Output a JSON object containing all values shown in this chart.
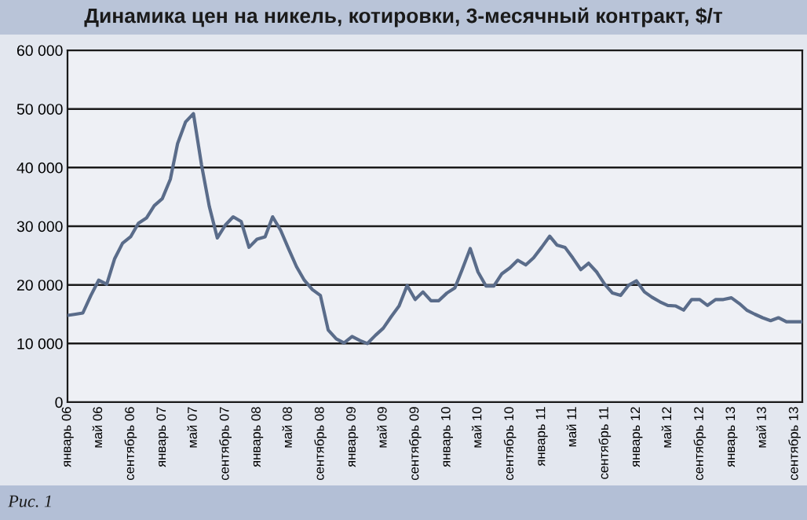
{
  "chart_data": {
    "type": "line",
    "title": "Динамика цен на никель, котировки, 3-месячный контракт, $/т",
    "annotations": [
      "Рис. 1"
    ],
    "x": [
      "2006-01",
      "2006-02",
      "2006-03",
      "2006-04",
      "2006-05",
      "2006-06",
      "2006-07",
      "2006-08",
      "2006-09",
      "2006-10",
      "2006-11",
      "2006-12",
      "2007-01",
      "2007-02",
      "2007-03",
      "2007-04",
      "2007-05",
      "2007-06",
      "2007-07",
      "2007-08",
      "2007-09",
      "2007-10",
      "2007-11",
      "2007-12",
      "2008-01",
      "2008-02",
      "2008-03",
      "2008-04",
      "2008-05",
      "2008-06",
      "2008-07",
      "2008-08",
      "2008-09",
      "2008-10",
      "2008-11",
      "2008-12",
      "2009-01",
      "2009-02",
      "2009-03",
      "2009-04",
      "2009-05",
      "2009-06",
      "2009-07",
      "2009-08",
      "2009-09",
      "2009-10",
      "2009-11",
      "2009-12",
      "2010-01",
      "2010-02",
      "2010-03",
      "2010-04",
      "2010-05",
      "2010-06",
      "2010-07",
      "2010-08",
      "2010-09",
      "2010-10",
      "2010-11",
      "2010-12",
      "2011-01",
      "2011-02",
      "2011-03",
      "2011-04",
      "2011-05",
      "2011-06",
      "2011-07",
      "2011-08",
      "2011-09",
      "2011-10",
      "2011-11",
      "2011-12",
      "2012-01",
      "2012-02",
      "2012-03",
      "2012-04",
      "2012-05",
      "2012-06",
      "2012-07",
      "2012-08",
      "2012-09",
      "2012-10",
      "2012-11",
      "2012-12",
      "2013-01",
      "2013-02",
      "2013-03",
      "2013-04",
      "2013-05",
      "2013-06",
      "2013-07",
      "2013-08",
      "2013-09",
      "2013-10"
    ],
    "series": [
      {
        "color": "#5a6c8a",
        "values": [
          14800,
          15000,
          15200,
          18200,
          20800,
          20100,
          24400,
          27100,
          28200,
          30500,
          31400,
          33500,
          34700,
          38000,
          44100,
          47800,
          49200,
          40500,
          33400,
          28000,
          30200,
          31600,
          30800,
          26400,
          27800,
          28200,
          31600,
          29300,
          26200,
          23100,
          20800,
          19200,
          18200,
          12300,
          10800,
          10100,
          11200,
          10500,
          10000,
          11400,
          12600,
          14600,
          16400,
          19900,
          17500,
          18800,
          17300,
          17300,
          18600,
          19500,
          22600,
          26200,
          22200,
          19800,
          19800,
          21900,
          22900,
          24200,
          23400,
          24600,
          26400,
          28300,
          26800,
          26400,
          24600,
          22600,
          23700,
          22200,
          20100,
          18600,
          18200,
          19900,
          20700,
          18800,
          17900,
          17100,
          16500,
          16400,
          15700,
          17500,
          17500,
          16500,
          17500,
          17500,
          17800,
          16800,
          15700,
          15000,
          14400,
          13900,
          14400,
          13700,
          13700,
          13700
        ]
      }
    ],
    "xlim": [
      "2006-01",
      "2013-10"
    ],
    "xticks": [
      {
        "value": "2006-01",
        "label": "январь 06"
      },
      {
        "value": "2006-05",
        "label": "май 06"
      },
      {
        "value": "2006-09",
        "label": "сентябрь 06"
      },
      {
        "value": "2007-01",
        "label": "январь 07"
      },
      {
        "value": "2007-05",
        "label": "май 07"
      },
      {
        "value": "2007-09",
        "label": "сентябрь 07"
      },
      {
        "value": "2008-01",
        "label": "январь 08"
      },
      {
        "value": "2008-05",
        "label": "май 08"
      },
      {
        "value": "2008-09",
        "label": "сентябрь 08"
      },
      {
        "value": "2009-01",
        "label": "январь 09"
      },
      {
        "value": "2009-05",
        "label": "май 09"
      },
      {
        "value": "2009-09",
        "label": "сентябрь 09"
      },
      {
        "value": "2010-01",
        "label": "январь 10"
      },
      {
        "value": "2010-05",
        "label": "май 10"
      },
      {
        "value": "2010-09",
        "label": "сентябрь 10"
      },
      {
        "value": "2011-01",
        "label": "январь 11"
      },
      {
        "value": "2011-05",
        "label": "май 11"
      },
      {
        "value": "2011-09",
        "label": "сентябрь 11"
      },
      {
        "value": "2012-01",
        "label": "январь 12"
      },
      {
        "value": "2012-05",
        "label": "май 12"
      },
      {
        "value": "2012-09",
        "label": "сентябрь 12"
      },
      {
        "value": "2013-01",
        "label": "январь 13"
      },
      {
        "value": "2013-05",
        "label": "май 13"
      },
      {
        "value": "2013-09",
        "label": "сентябрь 13"
      }
    ],
    "ylim": [
      0,
      60000
    ],
    "yticks": [
      0,
      {
        "value": 10000,
        "label": "10 000"
      },
      {
        "value": 20000,
        "label": "20 000"
      },
      {
        "value": 30000,
        "label": "30 000"
      },
      {
        "value": 40000,
        "label": "40 000"
      },
      {
        "value": 50000,
        "label": "50 000"
      },
      {
        "value": 60000,
        "label": "60 000"
      }
    ],
    "grid": "y",
    "marker": "none",
    "line_style": "solid"
  }
}
